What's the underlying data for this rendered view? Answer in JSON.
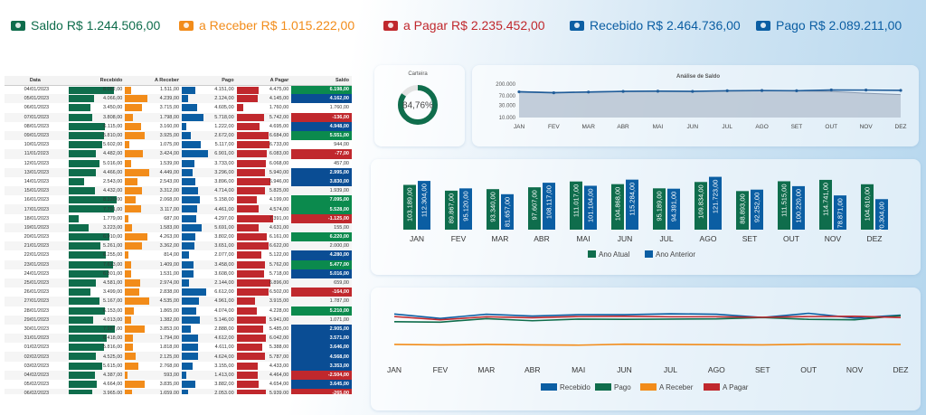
{
  "colors": {
    "recebido": "#0b5ea3",
    "pago": "#0f6d4c",
    "a_receber": "#f28c1a",
    "a_pagar": "#c0282d",
    "saldo_pos": "#0b8a4d",
    "saldo_neg": "#c0282d",
    "saldo_blue": "#0a4d94"
  },
  "kpis": [
    {
      "label": "Saldo",
      "value": "R$ 1.244.506,00",
      "color": "#0f6d4c",
      "icon": "money-icon"
    },
    {
      "label": "a Receber",
      "value": "R$ 1.015.222,00",
      "color": "#f28c1a",
      "icon": "money-icon"
    },
    {
      "label": "a Pagar",
      "value": "R$ 2.235.452,00",
      "color": "#c0282d",
      "icon": "money-icon"
    },
    {
      "label": "Recebido",
      "value": "R$ 2.464.736,00",
      "color": "#0b5ea3",
      "icon": "money-icon"
    },
    {
      "label": "Pago",
      "value": "R$ 2.089.211,00",
      "color": "#0b5ea3",
      "icon": "hand-money-icon"
    }
  ],
  "table": {
    "headers": [
      "Data",
      "Recebido",
      "A Receber",
      "Pago",
      "A Pagar",
      "Saldo"
    ],
    "rows": [
      {
        "data": "04/01/2023",
        "recebido": "8.082,00",
        "r": 0.8,
        "a_receber": "1.511,00",
        "ar": 0.1,
        "pago": "4.151,00",
        "p": 0.25,
        "a_pagar": "4.475,00",
        "ap": 0.4,
        "saldo": "6.198,00",
        "s": "pos"
      },
      {
        "data": "05/01/2023",
        "recebido": "4.066,00",
        "r": 0.45,
        "a_receber": "4.239,00",
        "ar": 0.4,
        "pago": "2.124,00",
        "p": 0.12,
        "a_pagar": "4.145,00",
        "ap": 0.38,
        "saldo": "4.162,00",
        "s": "blue"
      },
      {
        "data": "06/01/2023",
        "recebido": "3.450,00",
        "r": 0.38,
        "a_receber": "3.715,00",
        "ar": 0.3,
        "pago": "4.605,00",
        "p": 0.28,
        "a_pagar": "1.760,00",
        "ap": 0.12,
        "saldo": "1.760,00",
        "s": "zero"
      },
      {
        "data": "07/01/2023",
        "recebido": "3.808,00",
        "r": 0.42,
        "a_receber": "1.798,00",
        "ar": 0.14,
        "pago": "5.718,00",
        "p": 0.4,
        "a_pagar": "5.742,00",
        "ap": 0.5,
        "saldo": "-136,00",
        "s": "neg"
      },
      {
        "data": "08/01/2023",
        "recebido": "6.115,00",
        "r": 0.65,
        "a_receber": "3.160,00",
        "ar": 0.28,
        "pago": "1.222,00",
        "p": 0.08,
        "a_pagar": "4.695,00",
        "ap": 0.42,
        "saldo": "4.948,00",
        "s": "blue"
      },
      {
        "data": "09/01/2023",
        "recebido": "5.810,00",
        "r": 0.62,
        "a_receber": "3.925,00",
        "ar": 0.35,
        "pago": "2.672,00",
        "p": 0.16,
        "a_pagar": "6.684,00",
        "ap": 0.58,
        "saldo": "5.551,00",
        "s": "pos"
      },
      {
        "data": "10/01/2023",
        "recebido": "5.602,00",
        "r": 0.6,
        "a_receber": "1.075,00",
        "ar": 0.08,
        "pago": "5.117,00",
        "p": 0.34,
        "a_pagar": "6.733,00",
        "ap": 0.6,
        "saldo": "944,00",
        "s": "zero"
      },
      {
        "data": "11/01/2023",
        "recebido": "4.482,00",
        "r": 0.48,
        "a_receber": "3.424,00",
        "ar": 0.31,
        "pago": "6.901,00",
        "p": 0.48,
        "a_pagar": "6.083,00",
        "ap": 0.55,
        "saldo": "-77,00",
        "s": "neg"
      },
      {
        "data": "12/01/2023",
        "recebido": "5.016,00",
        "r": 0.54,
        "a_receber": "1.539,00",
        "ar": 0.1,
        "pago": "3.733,00",
        "p": 0.23,
        "a_pagar": "6.068,00",
        "ap": 0.54,
        "saldo": "457,00",
        "s": "zero"
      },
      {
        "data": "13/01/2023",
        "recebido": "4.466,00",
        "r": 0.48,
        "a_receber": "4.449,00",
        "ar": 0.42,
        "pago": "3.296,00",
        "p": 0.2,
        "a_pagar": "5.940,00",
        "ap": 0.52,
        "saldo": "2.995,00",
        "s": "blue"
      },
      {
        "data": "14/01/2023",
        "recebido": "2.543,00",
        "r": 0.27,
        "a_receber": "2.543,00",
        "ar": 0.22,
        "pago": "3.896,00",
        "p": 0.24,
        "a_pagar": "6.946,00",
        "ap": 0.62,
        "saldo": "3.830,00",
        "s": "blue"
      },
      {
        "data": "15/01/2023",
        "recebido": "4.432,00",
        "r": 0.47,
        "a_receber": "3.312,00",
        "ar": 0.3,
        "pago": "4.714,00",
        "p": 0.3,
        "a_pagar": "5.825,00",
        "ap": 0.51,
        "saldo": "1.939,00",
        "s": "zero"
      },
      {
        "data": "16/01/2023",
        "recebido": "8.320,00",
        "r": 0.85,
        "a_receber": "2.068,00",
        "ar": 0.18,
        "pago": "5.158,00",
        "p": 0.33,
        "a_pagar": "4.199,00",
        "ap": 0.37,
        "saldo": "7.095,00",
        "s": "pos"
      },
      {
        "data": "17/01/2023",
        "recebido": "7.791,00",
        "r": 0.8,
        "a_receber": "3.117,00",
        "ar": 0.28,
        "pago": "4.461,00",
        "p": 0.28,
        "a_pagar": "4.574,00",
        "ap": 0.4,
        "saldo": "5.528,00",
        "s": "pos"
      },
      {
        "data": "18/01/2023",
        "recebido": "1.779,00",
        "r": 0.18,
        "a_receber": "687,00",
        "ar": 0.05,
        "pago": "4.297,00",
        "p": 0.27,
        "a_pagar": "7.391,00",
        "ap": 0.66,
        "saldo": "-1.125,00",
        "s": "neg"
      },
      {
        "data": "19/01/2023",
        "recebido": "3.223,00",
        "r": 0.35,
        "a_receber": "1.583,00",
        "ar": 0.12,
        "pago": "5.691,00",
        "p": 0.37,
        "a_pagar": "4.631,00",
        "ap": 0.41,
        "saldo": "155,00",
        "s": "zero"
      },
      {
        "data": "20/01/2023",
        "recebido": "6.910,00",
        "r": 0.72,
        "a_receber": "4.263,00",
        "ar": 0.4,
        "pago": "3.802,00",
        "p": 0.24,
        "a_pagar": "6.161,00",
        "ap": 0.55,
        "saldo": "6.220,00",
        "s": "pos"
      },
      {
        "data": "21/01/2023",
        "recebido": "5.261,00",
        "r": 0.56,
        "a_receber": "3.362,00",
        "ar": 0.3,
        "pago": "3.651,00",
        "p": 0.23,
        "a_pagar": "6.622,00",
        "ap": 0.59,
        "saldo": "2.000,00",
        "s": "zero"
      },
      {
        "data": "22/01/2023",
        "recebido": "6.255,00",
        "r": 0.66,
        "a_receber": "814,00",
        "ar": 0.06,
        "pago": "2.077,00",
        "p": 0.13,
        "a_pagar": "5.122,00",
        "ap": 0.45,
        "saldo": "4.280,00",
        "s": "blue"
      },
      {
        "data": "23/01/2023",
        "recebido": "7.613,00",
        "r": 0.78,
        "a_receber": "1.409,00",
        "ar": 0.1,
        "pago": "3.458,00",
        "p": 0.21,
        "a_pagar": "5.762,00",
        "ap": 0.51,
        "saldo": "5.477,00",
        "s": "pos"
      },
      {
        "data": "24/01/2023",
        "recebido": "6.801,00",
        "r": 0.7,
        "a_receber": "1.531,00",
        "ar": 0.11,
        "pago": "3.608,00",
        "p": 0.22,
        "a_pagar": "5.718,00",
        "ap": 0.5,
        "saldo": "5.016,00",
        "s": "blue"
      },
      {
        "data": "25/01/2023",
        "recebido": "4.581,00",
        "r": 0.49,
        "a_receber": "2.974,00",
        "ar": 0.26,
        "pago": "2.144,00",
        "p": 0.13,
        "a_pagar": "6.896,00",
        "ap": 0.61,
        "saldo": "659,00",
        "s": "zero"
      },
      {
        "data": "26/01/2023",
        "recebido": "3.499,00",
        "r": 0.38,
        "a_receber": "2.838,00",
        "ar": 0.25,
        "pago": "6.612,00",
        "p": 0.45,
        "a_pagar": "6.502,00",
        "ap": 0.58,
        "saldo": "-164,00",
        "s": "neg"
      },
      {
        "data": "27/01/2023",
        "recebido": "5.167,00",
        "r": 0.55,
        "a_receber": "4.535,00",
        "ar": 0.43,
        "pago": "4.961,00",
        "p": 0.32,
        "a_pagar": "3.915,00",
        "ap": 0.34,
        "saldo": "1.787,00",
        "s": "zero"
      },
      {
        "data": "28/01/2023",
        "recebido": "6.153,00",
        "r": 0.64,
        "a_receber": "1.865,00",
        "ar": 0.15,
        "pago": "4.074,00",
        "p": 0.26,
        "a_pagar": "4.228,00",
        "ap": 0.37,
        "saldo": "5.210,00",
        "s": "pos"
      },
      {
        "data": "29/01/2023",
        "recebido": "4.013,00",
        "r": 0.43,
        "a_receber": "1.382,00",
        "ar": 0.1,
        "pago": "5.146,00",
        "p": 0.33,
        "a_pagar": "5.941,00",
        "ap": 0.53,
        "saldo": "1.071,00",
        "s": "zero"
      },
      {
        "data": "30/01/2023",
        "recebido": "7.987,00",
        "r": 0.82,
        "a_receber": "3.853,00",
        "ar": 0.35,
        "pago": "2.888,00",
        "p": 0.17,
        "a_pagar": "5.485,00",
        "ap": 0.48,
        "saldo": "2.905,00",
        "s": "blue"
      },
      {
        "data": "31/01/2023",
        "recebido": "6.418,00",
        "r": 0.67,
        "a_receber": "1.794,00",
        "ar": 0.14,
        "pago": "4.612,00",
        "p": 0.29,
        "a_pagar": "6.042,00",
        "ap": 0.54,
        "saldo": "3.571,00",
        "s": "blue"
      },
      {
        "data": "01/02/2023",
        "recebido": "5.816,00",
        "r": 0.62,
        "a_receber": "1.818,00",
        "ar": 0.14,
        "pago": "4.611,00",
        "p": 0.29,
        "a_pagar": "5.388,00",
        "ap": 0.47,
        "saldo": "3.646,00",
        "s": "blue"
      },
      {
        "data": "02/02/2023",
        "recebido": "4.525,00",
        "r": 0.48,
        "a_receber": "2.125,00",
        "ar": 0.18,
        "pago": "4.624,00",
        "p": 0.29,
        "a_pagar": "5.787,00",
        "ap": 0.51,
        "saldo": "4.568,00",
        "s": "blue"
      },
      {
        "data": "03/02/2023",
        "recebido": "5.615,00",
        "r": 0.6,
        "a_receber": "2.768,00",
        "ar": 0.24,
        "pago": "3.155,00",
        "p": 0.19,
        "a_pagar": "4.433,00",
        "ap": 0.39,
        "saldo": "3.353,00",
        "s": "blue"
      },
      {
        "data": "04/02/2023",
        "recebido": "4.387,00",
        "r": 0.47,
        "a_receber": "593,00",
        "ar": 0.04,
        "pago": "1.413,00",
        "p": 0.08,
        "a_pagar": "4.464,00",
        "ap": 0.39,
        "saldo": "-2.504,00",
        "s": "neg"
      },
      {
        "data": "05/02/2023",
        "recebido": "4.664,00",
        "r": 0.5,
        "a_receber": "3.835,00",
        "ar": 0.35,
        "pago": "3.882,00",
        "p": 0.24,
        "a_pagar": "4.654,00",
        "ap": 0.41,
        "saldo": "3.645,00",
        "s": "blue"
      },
      {
        "data": "06/02/2023",
        "recebido": "3.965,00",
        "r": 0.42,
        "a_receber": "1.659,00",
        "ar": 0.12,
        "pago": "2.053,00",
        "p": 0.12,
        "a_pagar": "5.939,00",
        "ap": 0.53,
        "saldo": "-265,00",
        "s": "neg"
      }
    ]
  },
  "carteira": {
    "title": "Carteira",
    "value": "84,76%",
    "fraction": 0.8476
  },
  "chart_data": [
    {
      "type": "area",
      "title": "Análise de Saldo",
      "categories": [
        "JAN",
        "FEV",
        "MAR",
        "ABR",
        "MAI",
        "JUN",
        "JUL",
        "AGO",
        "SET",
        "OUT",
        "NOV",
        "DEZ"
      ],
      "yticks": [
        "200.000",
        "70.000",
        "30.000",
        "10.000"
      ],
      "scale": "log",
      "series": [
        {
          "values": [
            100000,
            92000,
            98000,
            104000,
            106000,
            104000,
            110000,
            112000,
            110000,
            118000,
            117000,
            114000
          ]
        },
        {
          "values": [
            104000,
            96000,
            100000,
            106000,
            108000,
            106000,
            106000,
            110000,
            108000,
            104000,
            88000,
            78000
          ]
        }
      ]
    },
    {
      "type": "bar",
      "categories": [
        "JAN",
        "FEV",
        "MAR",
        "ABR",
        "MAI",
        "JUN",
        "JUL",
        "AGO",
        "SET",
        "OUT",
        "NOV",
        "DEZ"
      ],
      "series": [
        {
          "name": "Ano Atual",
          "values": [
            103189,
            89867,
            93340,
            97607,
            111017,
            104868,
            95189,
            109834,
            88893,
            111515,
            114741,
            104610
          ],
          "labels": [
            "103.189,00",
            "89.867,00",
            "93.340,00",
            "97.607,00",
            "111.017,00",
            "104.868,00",
            "95.189,00",
            "109.834,00",
            "88.893,00",
            "111.515,00",
            "114.741,00",
            "104.610,00"
          ]
        },
        {
          "name": "Ano Anterior",
          "values": [
            112304,
            95120,
            81657,
            108117,
            101104,
            115284,
            94391,
            121723,
            92252,
            100220,
            78871,
            70304
          ],
          "labels": [
            "112.304,00",
            "95.120,00",
            "81.657,00",
            "108.117,00",
            "101.104,00",
            "115.284,00",
            "94.391,00",
            "121.723,00",
            "92.252,00",
            "100.220,00",
            "78.871,00",
            "70.304,00"
          ]
        }
      ]
    },
    {
      "type": "line",
      "categories": [
        "JAN",
        "FEV",
        "MAR",
        "ABR",
        "MAI",
        "JUN",
        "JUL",
        "AGO",
        "SET",
        "OUT",
        "NOV",
        "DEZ"
      ],
      "series": [
        {
          "name": "Recebido",
          "color": "#0b5ea3",
          "values": [
            215000,
            196000,
            214000,
            206000,
            212000,
            212000,
            216000,
            214000,
            200000,
            218000,
            198000,
            210000
          ]
        },
        {
          "name": "Pago",
          "color": "#0f6d4c",
          "values": [
            182000,
            180000,
            195000,
            186000,
            193000,
            192000,
            193000,
            194000,
            200000,
            192000,
            190000,
            208000
          ]
        },
        {
          "name": "A Receber",
          "color": "#f28c1a",
          "values": [
            84000,
            82000,
            84000,
            82000,
            81000,
            85000,
            84000,
            83000,
            82000,
            85000,
            85000,
            84000
          ]
        },
        {
          "name": "A Pagar",
          "color": "#c0282d",
          "values": [
            204000,
            190000,
            203000,
            199000,
            204000,
            205000,
            203000,
            203000,
            201000,
            204000,
            205000,
            200000
          ]
        }
      ]
    }
  ]
}
